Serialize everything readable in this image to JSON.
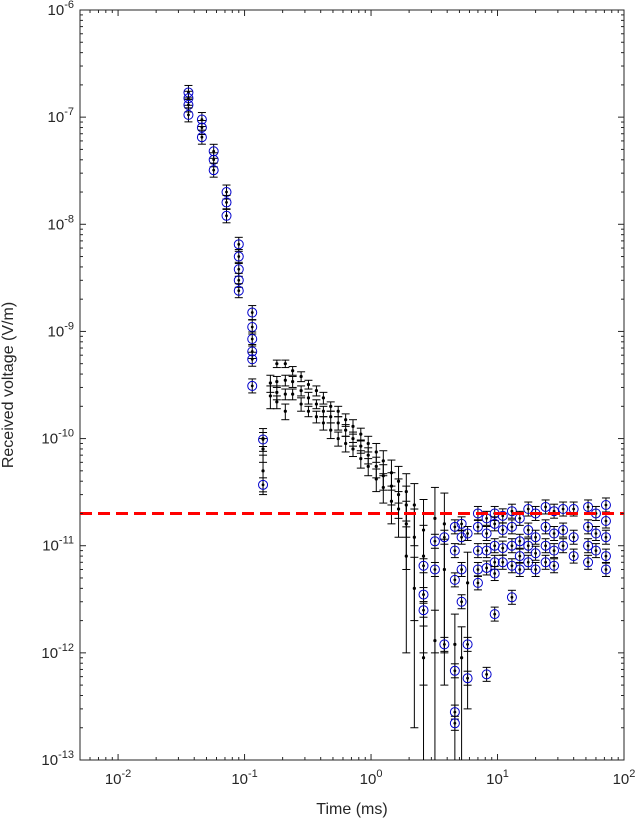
{
  "chart_data": {
    "type": "scatter",
    "title": "",
    "xlabel": "Time (ms)",
    "ylabel": "Received voltage (V/m)",
    "xscale": "log",
    "yscale": "log",
    "xlim": [
      0.005,
      100
    ],
    "ylim": [
      1e-13,
      1e-06
    ],
    "grid": false,
    "legend": "none",
    "x_ticks": [
      {
        "base": "10",
        "exp": "-2",
        "value": 0.01
      },
      {
        "base": "10",
        "exp": "-1",
        "value": 0.1
      },
      {
        "base": "10",
        "exp": "0",
        "value": 1
      },
      {
        "base": "10",
        "exp": "1",
        "value": 10
      },
      {
        "base": "10",
        "exp": "2",
        "value": 100
      }
    ],
    "y_ticks": [
      {
        "base": "10",
        "exp": "-13",
        "value": 1e-13
      },
      {
        "base": "10",
        "exp": "-12",
        "value": 1e-12
      },
      {
        "base": "10",
        "exp": "-11",
        "value": 1e-11
      },
      {
        "base": "10",
        "exp": "-10",
        "value": 1e-10
      },
      {
        "base": "10",
        "exp": "-9",
        "value": 1e-09
      },
      {
        "base": "10",
        "exp": "-8",
        "value": 1e-08
      },
      {
        "base": "10",
        "exp": "-7",
        "value": 1e-07
      },
      {
        "base": "10",
        "exp": "-6",
        "value": 1e-06
      }
    ],
    "threshold": {
      "value": 2e-11,
      "color": "#ff0000",
      "style": "dashed"
    },
    "colors": {
      "measured": "#000000",
      "circled": "#0000cc",
      "threshold": "#ff0000",
      "axes": "#262626"
    },
    "series": [
      {
        "marker": "circle",
        "color": "#0000cc",
        "points": [
          [
            0.036,
            1.7e-07
          ],
          [
            0.036,
            1.5e-07
          ],
          [
            0.036,
            1.3e-07
          ],
          [
            0.036,
            1.05e-07
          ],
          [
            0.046,
            9.5e-08
          ],
          [
            0.046,
            8e-08
          ],
          [
            0.046,
            6.5e-08
          ],
          [
            0.057,
            4.8e-08
          ],
          [
            0.057,
            4e-08
          ],
          [
            0.057,
            3.2e-08
          ],
          [
            0.072,
            2e-08
          ],
          [
            0.072,
            1.6e-08
          ],
          [
            0.072,
            1.2e-08
          ],
          [
            0.09,
            6.5e-09
          ],
          [
            0.09,
            5e-09
          ],
          [
            0.09,
            3.8e-09
          ],
          [
            0.09,
            3e-09
          ],
          [
            0.09,
            2.4e-09
          ],
          [
            0.115,
            1.5e-09
          ],
          [
            0.115,
            1.1e-09
          ],
          [
            0.115,
            8.5e-10
          ],
          [
            0.115,
            6.5e-10
          ],
          [
            0.115,
            5.5e-10
          ],
          [
            0.115,
            3.1e-10
          ],
          [
            0.14,
            9.8e-11
          ],
          [
            0.14,
            3.7e-11
          ],
          [
            2.6,
            6.5e-12
          ],
          [
            2.6,
            3.5e-12
          ],
          [
            2.6,
            2.5e-12
          ],
          [
            3.2,
            1.1e-11
          ],
          [
            3.2,
            6e-12
          ],
          [
            3.8,
            1.2e-11
          ],
          [
            3.8,
            1.2e-12
          ],
          [
            4.6,
            1.5e-11
          ],
          [
            4.6,
            9e-12
          ],
          [
            4.6,
            4.8e-12
          ],
          [
            4.6,
            6.8e-13
          ],
          [
            4.6,
            2.8e-13
          ],
          [
            4.6,
            2.2e-13
          ],
          [
            5.2,
            1.6e-11
          ],
          [
            5.2,
            1.2e-11
          ],
          [
            5.2,
            6e-12
          ],
          [
            5.2,
            3e-12
          ],
          [
            5.8,
            1.3e-11
          ],
          [
            5.8,
            1.2e-12
          ],
          [
            5.8,
            5.8e-13
          ],
          [
            7.0,
            2e-11
          ],
          [
            7.0,
            1.5e-11
          ],
          [
            7.0,
            9e-12
          ],
          [
            7.0,
            6e-12
          ],
          [
            7.0,
            4.5e-12
          ],
          [
            8.2,
            1.8e-11
          ],
          [
            8.2,
            1.3e-11
          ],
          [
            8.2,
            9e-12
          ],
          [
            8.2,
            6.2e-12
          ],
          [
            8.2,
            6.3e-13
          ],
          [
            9.5,
            2e-11
          ],
          [
            9.5,
            1.6e-11
          ],
          [
            9.5,
            1e-11
          ],
          [
            9.5,
            7e-12
          ],
          [
            9.5,
            5.5e-12
          ],
          [
            9.5,
            2.3e-12
          ],
          [
            11.0,
            1.9e-11
          ],
          [
            11.0,
            1.4e-11
          ],
          [
            11.0,
            9.5e-12
          ],
          [
            11.0,
            7e-12
          ],
          [
            13.0,
            2.1e-11
          ],
          [
            13.0,
            1.5e-11
          ],
          [
            13.0,
            1e-11
          ],
          [
            13.0,
            6.5e-12
          ],
          [
            13.0,
            3.3e-12
          ],
          [
            15.0,
            1.8e-11
          ],
          [
            15.0,
            1.1e-11
          ],
          [
            15.0,
            8e-12
          ],
          [
            15.0,
            6e-12
          ],
          [
            17.5,
            2.2e-11
          ],
          [
            17.5,
            1.4e-11
          ],
          [
            17.5,
            1e-11
          ],
          [
            17.5,
            7e-12
          ],
          [
            20.0,
            2e-11
          ],
          [
            20.0,
            1.2e-11
          ],
          [
            20.0,
            8.5e-12
          ],
          [
            20.0,
            6e-12
          ],
          [
            24.0,
            2.3e-11
          ],
          [
            24.0,
            1.5e-11
          ],
          [
            24.0,
            1e-11
          ],
          [
            24.0,
            7e-12
          ],
          [
            28.0,
            2.1e-11
          ],
          [
            28.0,
            1.3e-11
          ],
          [
            28.0,
            9e-12
          ],
          [
            28.0,
            6.5e-12
          ],
          [
            33.0,
            2.2e-11
          ],
          [
            33.0,
            1.4e-11
          ],
          [
            33.0,
            1e-11
          ],
          [
            40.0,
            2.2e-11
          ],
          [
            40.0,
            1.2e-11
          ],
          [
            40.0,
            8e-12
          ],
          [
            52.0,
            2.3e-11
          ],
          [
            52.0,
            1.5e-11
          ],
          [
            52.0,
            1e-11
          ],
          [
            52.0,
            7e-12
          ],
          [
            60.0,
            2e-11
          ],
          [
            60.0,
            1.3e-11
          ],
          [
            60.0,
            9e-12
          ],
          [
            72.0,
            2.4e-11
          ],
          [
            72.0,
            1.7e-11
          ],
          [
            72.0,
            1.2e-11
          ],
          [
            72.0,
            8e-12
          ],
          [
            72.0,
            6e-12
          ]
        ]
      },
      {
        "marker": "dot-errorbar",
        "color": "#000000",
        "points": [
          [
            0.14,
            1e-10,
            2.4e-11,
            0.0
          ],
          [
            0.14,
            8e-11,
            2e-11,
            0.0
          ],
          [
            0.14,
            5e-11,
            2e-11,
            0.0
          ],
          [
            0.16,
            2.5e-10,
            6e-11,
            0.0
          ],
          [
            0.16,
            3.3e-10,
            6e-11,
            0.0
          ],
          [
            0.18,
            5e-10,
            4e-11,
            0.0
          ],
          [
            0.18,
            3.4e-10,
            4e-11,
            0.0
          ],
          [
            0.18,
            2.7e-10,
            4e-11,
            0.0
          ],
          [
            0.18,
            2.2e-10,
            3e-11,
            0.0
          ],
          [
            0.21,
            5e-10,
            4e-11,
            0.0
          ],
          [
            0.21,
            3.5e-10,
            4e-11,
            0.0
          ],
          [
            0.21,
            2.6e-10,
            3e-11,
            0.0
          ],
          [
            0.21,
            1.8e-10,
            3e-11,
            0.0
          ],
          [
            0.24,
            4.3e-10,
            4e-11,
            0.0
          ],
          [
            0.24,
            3.4e-10,
            4e-11,
            0.0
          ],
          [
            0.24,
            2.6e-10,
            3e-11,
            0.0
          ],
          [
            0.28,
            3.8e-10,
            4e-11,
            0.0
          ],
          [
            0.28,
            2.8e-10,
            3e-11,
            0.0
          ],
          [
            0.28,
            2.1e-10,
            3e-11,
            0.0
          ],
          [
            0.32,
            3.2e-10,
            3e-11,
            0.0
          ],
          [
            0.32,
            2.4e-10,
            3e-11,
            0.0
          ],
          [
            0.32,
            1.8e-10,
            2e-11,
            0.0
          ],
          [
            0.37,
            2.8e-10,
            3e-11,
            0.0
          ],
          [
            0.37,
            2.1e-10,
            2e-11,
            0.0
          ],
          [
            0.37,
            1.6e-10,
            2e-11,
            0.0
          ],
          [
            0.42,
            2.4e-10,
            3e-11,
            0.0
          ],
          [
            0.42,
            1.8e-10,
            2e-11,
            0.0
          ],
          [
            0.42,
            1.4e-10,
            2e-11,
            0.0
          ],
          [
            0.48,
            2e-10,
            2e-11,
            0.0
          ],
          [
            0.48,
            1.6e-10,
            2e-11,
            0.0
          ],
          [
            0.48,
            1.2e-10,
            2e-11,
            0.0
          ],
          [
            0.55,
            1.8e-10,
            2e-11,
            0.0
          ],
          [
            0.55,
            1.4e-10,
            2e-11,
            0.0
          ],
          [
            0.55,
            1e-10,
            1.5e-11,
            0.0
          ],
          [
            0.63,
            1.5e-10,
            2e-11,
            0.0
          ],
          [
            0.63,
            1.2e-10,
            1.5e-11,
            0.0
          ],
          [
            0.63,
            9e-11,
            1.5e-11,
            0.0
          ],
          [
            0.72,
            1.3e-10,
            2e-11,
            0.0
          ],
          [
            0.72,
            1e-10,
            1.5e-11,
            0.0
          ],
          [
            0.72,
            8e-11,
            1.2e-11,
            0.0
          ],
          [
            0.83,
            1.1e-10,
            1.5e-11,
            0.0
          ],
          [
            0.83,
            8.5e-11,
            1.2e-11,
            0.0
          ],
          [
            0.83,
            6.5e-11,
            1.2e-11,
            0.0
          ],
          [
            0.95,
            9e-11,
            1.5e-11,
            0.0
          ],
          [
            0.95,
            7e-11,
            1.2e-11,
            0.0
          ],
          [
            0.95,
            5.5e-11,
            1e-11,
            0.0
          ],
          [
            1.1,
            7.5e-11,
            1.5e-11,
            0.0
          ],
          [
            1.1,
            5.5e-11,
            1.2e-11,
            0.0
          ],
          [
            1.1,
            4.2e-11,
            1e-11,
            0.0
          ],
          [
            1.25,
            6.2e-11,
            1.5e-11,
            0.0
          ],
          [
            1.25,
            4.5e-11,
            1.2e-11,
            0.0
          ],
          [
            1.25,
            3.5e-11,
            1e-11,
            0.0
          ],
          [
            1.45,
            4.8e-11,
            1.5e-11,
            0.0
          ],
          [
            1.45,
            3.6e-11,
            1.2e-11,
            0.0
          ],
          [
            1.45,
            2.6e-11,
            1e-11,
            0.0
          ],
          [
            1.65,
            4e-11,
            1.5e-11,
            0.0
          ],
          [
            1.65,
            3e-11,
            1.2e-11,
            0.0
          ],
          [
            1.65,
            2.2e-11,
            1e-11,
            0.0
          ],
          [
            1.9,
            3.2e-11,
            1.5e-11,
            0.0
          ],
          [
            1.9,
            2.4e-11,
            1.2e-11,
            0.0
          ],
          [
            1.9,
            1.6e-11,
            1e-11,
            0.0
          ],
          [
            1.9,
            8e-12,
            7e-12,
            0.0
          ],
          [
            2.2,
            2.4e-11,
            1.4e-11,
            0.0
          ],
          [
            2.2,
            1.2e-11,
            1e-11,
            0.0
          ],
          [
            2.2,
            4e-12,
            3.8e-12,
            0.0
          ],
          [
            2.6,
            1.4e-11,
            1.3e-11,
            0.0
          ],
          [
            2.6,
            8e-12,
            7.5e-12,
            0.0
          ],
          [
            2.6,
            9e-13,
            8.8e-13,
            0.0
          ],
          [
            3.2,
            1.8e-11,
            1.7e-11,
            0.0
          ],
          [
            3.2,
            1.3e-12,
            1.2e-12,
            0.0
          ],
          [
            3.8,
            1.6e-11,
            1.5e-11,
            0.0
          ],
          [
            3.8,
            6e-12,
            5.5e-12,
            0.0
          ],
          [
            4.6,
            1.2e-12,
            1.1e-12,
            0.0
          ],
          [
            5.2,
            9e-13,
            8.5e-13,
            0.0
          ],
          [
            5.8,
            4.5e-12,
            4.2e-12,
            0.0
          ]
        ]
      }
    ]
  }
}
